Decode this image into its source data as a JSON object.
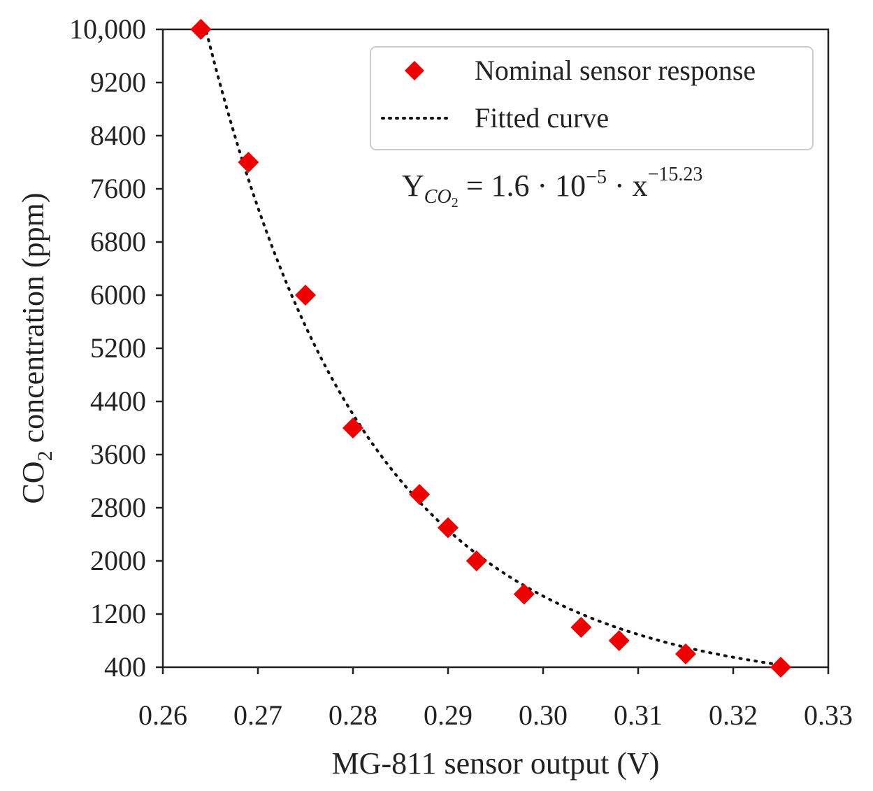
{
  "chart_data": {
    "type": "scatter",
    "title": "",
    "xlabel": "MG-811 sensor output (V)",
    "ylabel_main": "CO",
    "ylabel_sub": "2",
    "ylabel_rest": " concentration (ppm)",
    "xlim": [
      0.26,
      0.33
    ],
    "ylim": [
      400,
      10000
    ],
    "x_ticks": [
      0.26,
      0.27,
      0.28,
      0.29,
      0.3,
      0.31,
      0.32,
      0.33
    ],
    "x_tick_labels": [
      "0.26",
      "0.27",
      "0.28",
      "0.29",
      "0.30",
      "0.31",
      "0.32",
      "0.33"
    ],
    "y_ticks": [
      400,
      1200,
      2000,
      2800,
      3600,
      4400,
      5200,
      6000,
      6800,
      7600,
      8400,
      9200,
      10000
    ],
    "y_tick_labels": [
      "400",
      "1200",
      "2000",
      "2800",
      "3600",
      "4400",
      "5200",
      "6000",
      "6800",
      "7600",
      "8400",
      "9200",
      "10,000"
    ],
    "series": [
      {
        "name": "Nominal sensor response",
        "kind": "scatter",
        "marker": "diamond",
        "color": "#ee0000",
        "x": [
          0.264,
          0.269,
          0.275,
          0.28,
          0.287,
          0.29,
          0.293,
          0.298,
          0.304,
          0.308,
          0.315,
          0.325
        ],
        "y": [
          10000,
          8000,
          6000,
          4000,
          3000,
          2500,
          2000,
          1500,
          1000,
          800,
          600,
          400
        ]
      },
      {
        "name": "Fitted curve",
        "kind": "line",
        "style": "dotted",
        "color": "#111111",
        "formula": "y = 1.6e-5 * x^-15.23",
        "x_range": [
          0.264,
          0.326
        ]
      }
    ],
    "legend_position": "top-right",
    "annotation": {
      "Y": "Y",
      "sub": "CO",
      "sub2": "2",
      "eq": " = 1.6 · 10",
      "exp1": "−5",
      "mid": " · x",
      "exp2": "−15.23"
    }
  }
}
